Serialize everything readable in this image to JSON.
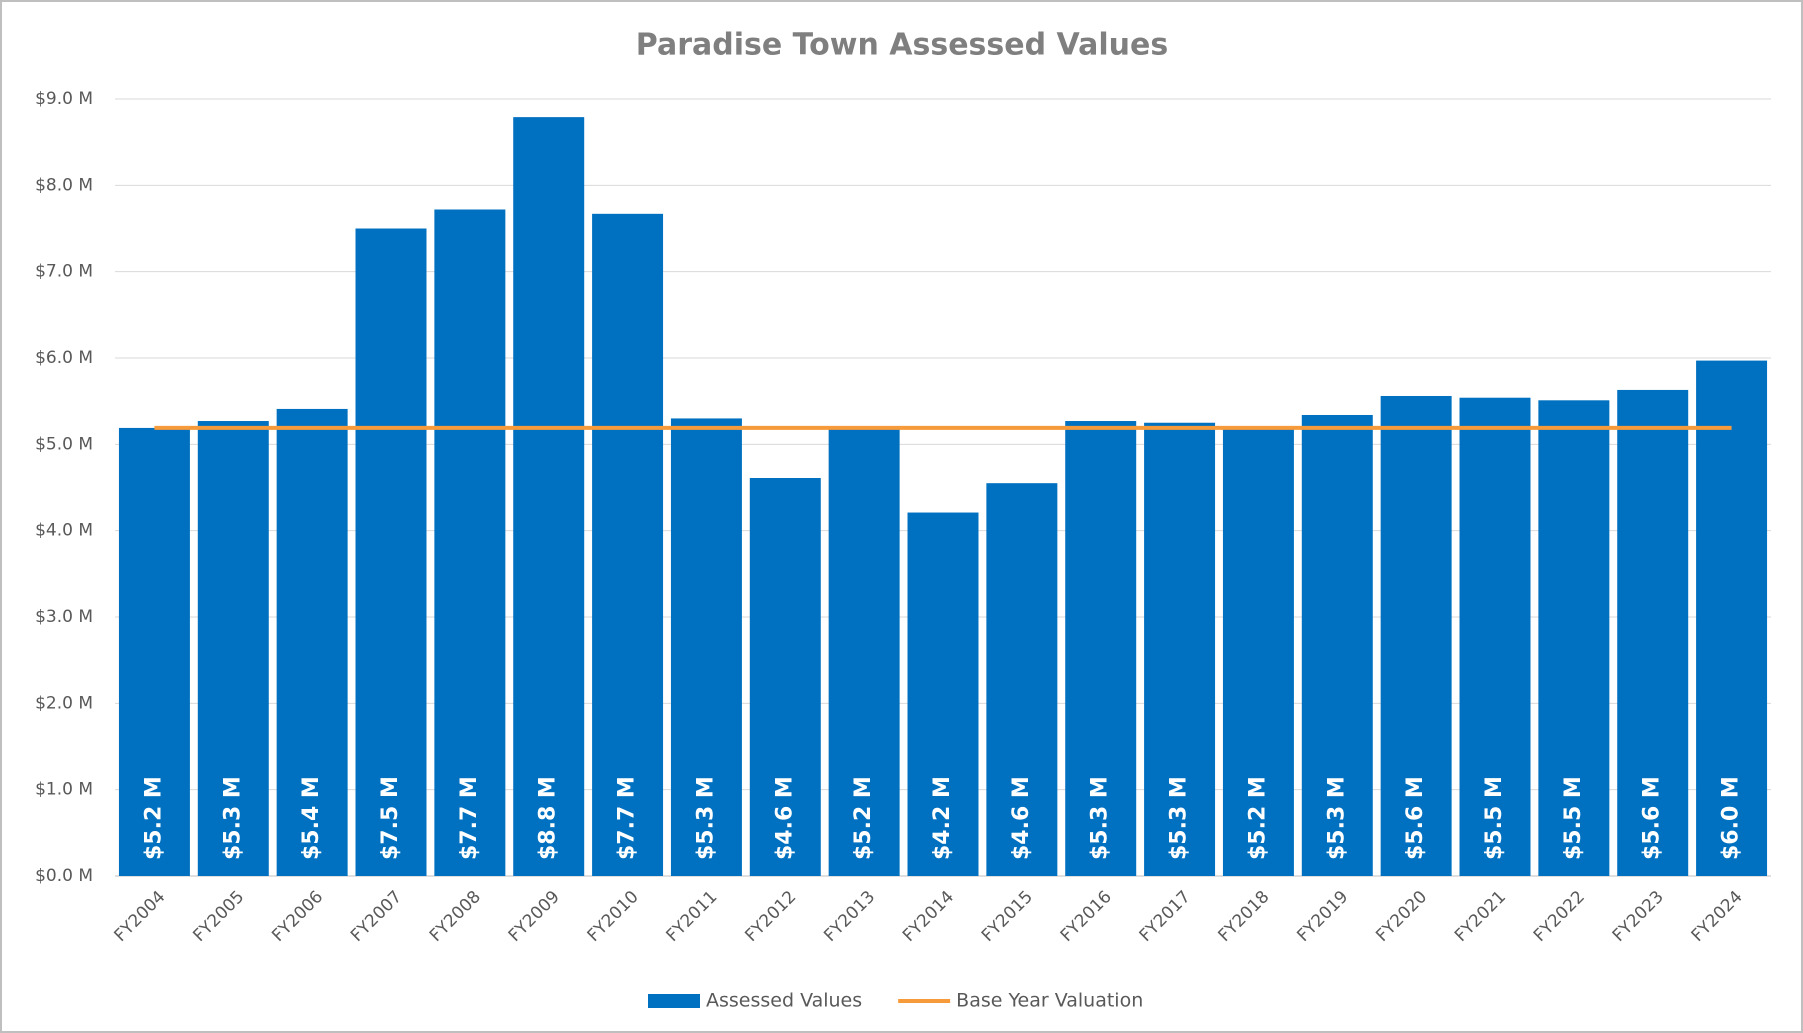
{
  "chart_data": {
    "type": "bar",
    "title": "Paradise Town Assessed Values",
    "categories": [
      "FY2004",
      "FY2005",
      "FY2006",
      "FY2007",
      "FY2008",
      "FY2009",
      "FY2010",
      "FY2011",
      "FY2012",
      "FY2013",
      "FY2014",
      "FY2015",
      "FY2016",
      "FY2017",
      "FY2018",
      "FY2019",
      "FY2020",
      "FY2021",
      "FY2022",
      "FY2023",
      "FY2024"
    ],
    "series": [
      {
        "name": "Assessed Values",
        "type": "bar",
        "color": "#0070c0",
        "values": [
          5.19,
          5.27,
          5.41,
          7.5,
          7.72,
          8.79,
          7.67,
          5.3,
          4.61,
          5.19,
          4.21,
          4.55,
          5.27,
          5.25,
          5.19,
          5.34,
          5.56,
          5.54,
          5.51,
          5.63,
          5.97
        ],
        "value_labels": [
          "$5.2 M",
          "$5.3 M",
          "$5.4 M",
          "$7.5 M",
          "$7.7 M",
          "$8.8 M",
          "$7.7 M",
          "$5.3 M",
          "$4.6 M",
          "$5.2 M",
          "$4.2 M",
          "$4.6 M",
          "$5.3 M",
          "$5.3 M",
          "$5.2 M",
          "$5.3 M",
          "$5.6 M",
          "$5.5 M",
          "$5.5 M",
          "$5.6 M",
          "$6.0 M"
        ]
      },
      {
        "name": "Base Year Valuation",
        "type": "line",
        "color": "#f79a3a",
        "values": [
          5.19,
          5.19,
          5.19,
          5.19,
          5.19,
          5.19,
          5.19,
          5.19,
          5.19,
          5.19,
          5.19,
          5.19,
          5.19,
          5.19,
          5.19,
          5.19,
          5.19,
          5.19,
          5.19,
          5.19,
          5.19
        ]
      }
    ],
    "ylim": [
      0,
      9
    ],
    "yticks": [
      {
        "value": 0,
        "label": "$0.0 M"
      },
      {
        "value": 1,
        "label": "$1.0 M"
      },
      {
        "value": 2,
        "label": "$2.0 M"
      },
      {
        "value": 3,
        "label": "$3.0 M"
      },
      {
        "value": 4,
        "label": "$4.0 M"
      },
      {
        "value": 5,
        "label": "$5.0 M"
      },
      {
        "value": 6,
        "label": "$6.0 M"
      },
      {
        "value": 7,
        "label": "$7.0 M"
      },
      {
        "value": 8,
        "label": "$8.0 M"
      },
      {
        "value": 9,
        "label": "$9.0 M"
      }
    ],
    "grid": true,
    "legend": "bottom"
  }
}
